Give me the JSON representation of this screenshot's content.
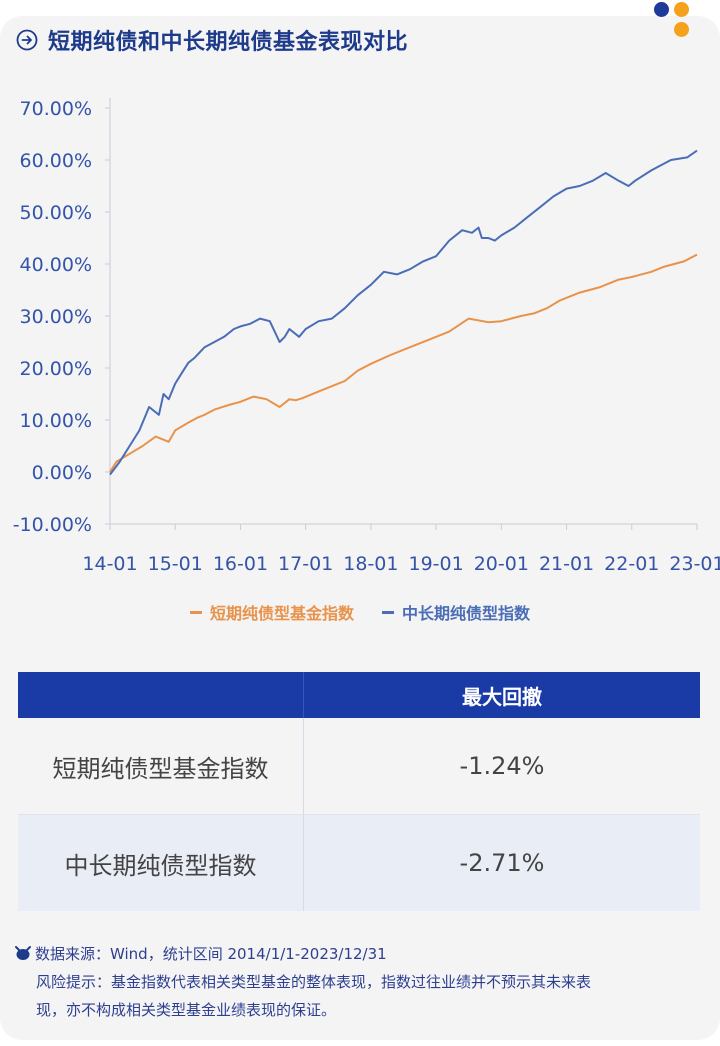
{
  "header": {
    "title": "短期纯债和中长期纯债基金表现对比"
  },
  "colors": {
    "short": "#e8924a",
    "long": "#4a6db5",
    "table_head": "#1a3aa6",
    "dot_blue": "#1e3a9a",
    "dot_orange": "#f5a11c"
  },
  "chart_data": {
    "type": "line",
    "x_ticks": [
      "14-01",
      "15-01",
      "16-01",
      "17-01",
      "18-01",
      "19-01",
      "20-01",
      "21-01",
      "22-01",
      "23-01"
    ],
    "y_ticks": [
      "70.00%",
      "60.00%",
      "50.00%",
      "40.00%",
      "30.00%",
      "20.00%",
      "10.00%",
      "0.00%",
      "-10.00%"
    ],
    "ylim": [
      -10,
      70
    ],
    "xlim": [
      2014.0,
      2023.0
    ],
    "series": [
      {
        "name": "短期纯债型基金指数",
        "color": "#e8924a",
        "x": [
          2014.0,
          2014.1,
          2014.3,
          2014.5,
          2014.7,
          2014.9,
          2015.0,
          2015.2,
          2015.35,
          2015.45,
          2015.6,
          2015.8,
          2016.0,
          2016.2,
          2016.4,
          2016.6,
          2016.75,
          2016.85,
          2016.95,
          2017.2,
          2017.4,
          2017.6,
          2017.8,
          2018.0,
          2018.3,
          2018.6,
          2018.9,
          2019.2,
          2019.5,
          2019.8,
          2020.0,
          2020.3,
          2020.5,
          2020.7,
          2020.9,
          2021.2,
          2021.5,
          2021.8,
          2022.0,
          2022.3,
          2022.5,
          2022.8,
          2023.0
        ],
        "y": [
          0.0,
          2.0,
          3.5,
          5.0,
          6.8,
          5.8,
          8.0,
          9.5,
          10.5,
          11.0,
          12.0,
          12.8,
          13.5,
          14.5,
          14.0,
          12.5,
          14.0,
          13.8,
          14.2,
          15.5,
          16.5,
          17.5,
          19.5,
          20.8,
          22.5,
          24.0,
          25.5,
          27.0,
          29.5,
          28.8,
          29.0,
          30.0,
          30.5,
          31.5,
          33.0,
          34.5,
          35.5,
          37.0,
          37.5,
          38.5,
          39.5,
          40.5,
          41.8
        ]
      },
      {
        "name": "中长期纯债型指数",
        "color": "#4a6db5",
        "x": [
          2014.0,
          2014.15,
          2014.3,
          2014.45,
          2014.6,
          2014.75,
          2014.82,
          2014.9,
          2015.0,
          2015.1,
          2015.2,
          2015.3,
          2015.45,
          2015.6,
          2015.75,
          2015.9,
          2016.0,
          2016.15,
          2016.3,
          2016.45,
          2016.6,
          2016.68,
          2016.75,
          2016.9,
          2017.0,
          2017.2,
          2017.4,
          2017.6,
          2017.8,
          2018.0,
          2018.2,
          2018.4,
          2018.6,
          2018.8,
          2019.0,
          2019.2,
          2019.4,
          2019.55,
          2019.65,
          2019.7,
          2019.8,
          2019.9,
          2020.0,
          2020.2,
          2020.4,
          2020.6,
          2020.8,
          2021.0,
          2021.2,
          2021.4,
          2021.6,
          2021.8,
          2021.95,
          2022.05,
          2022.3,
          2022.6,
          2022.85,
          2023.0
        ],
        "y": [
          -0.5,
          2.0,
          5.0,
          8.0,
          12.5,
          11.0,
          15.0,
          14.0,
          17.0,
          19.0,
          21.0,
          22.0,
          24.0,
          25.0,
          26.0,
          27.5,
          28.0,
          28.5,
          29.5,
          29.0,
          25.0,
          26.0,
          27.5,
          26.0,
          27.5,
          29.0,
          29.5,
          31.5,
          34.0,
          36.0,
          38.5,
          38.0,
          39.0,
          40.5,
          41.5,
          44.5,
          46.5,
          46.0,
          47.0,
          45.0,
          45.0,
          44.5,
          45.5,
          47.0,
          49.0,
          51.0,
          53.0,
          54.5,
          55.0,
          56.0,
          57.5,
          56.0,
          55.0,
          56.0,
          58.0,
          60.0,
          60.5,
          61.8
        ]
      }
    ]
  },
  "legend": {
    "short_label": "短期纯债型基金指数",
    "long_label": "中长期纯债型指数"
  },
  "table": {
    "col2_header": "最大回撤",
    "rows": [
      {
        "name": "短期纯债型基金指数",
        "value": "-1.24%"
      },
      {
        "name": "中长期纯债型指数",
        "value": "-2.71%"
      }
    ]
  },
  "footer": {
    "line1": "数据来源：Wind，统计区间 2014/1/1-2023/12/31",
    "line2": "风险提示：基金指数代表相关类型基金的整体表现，指数过往业绩并不预示其未来表",
    "line3": "现，亦不构成相关类型基金业绩表现的保证。"
  }
}
